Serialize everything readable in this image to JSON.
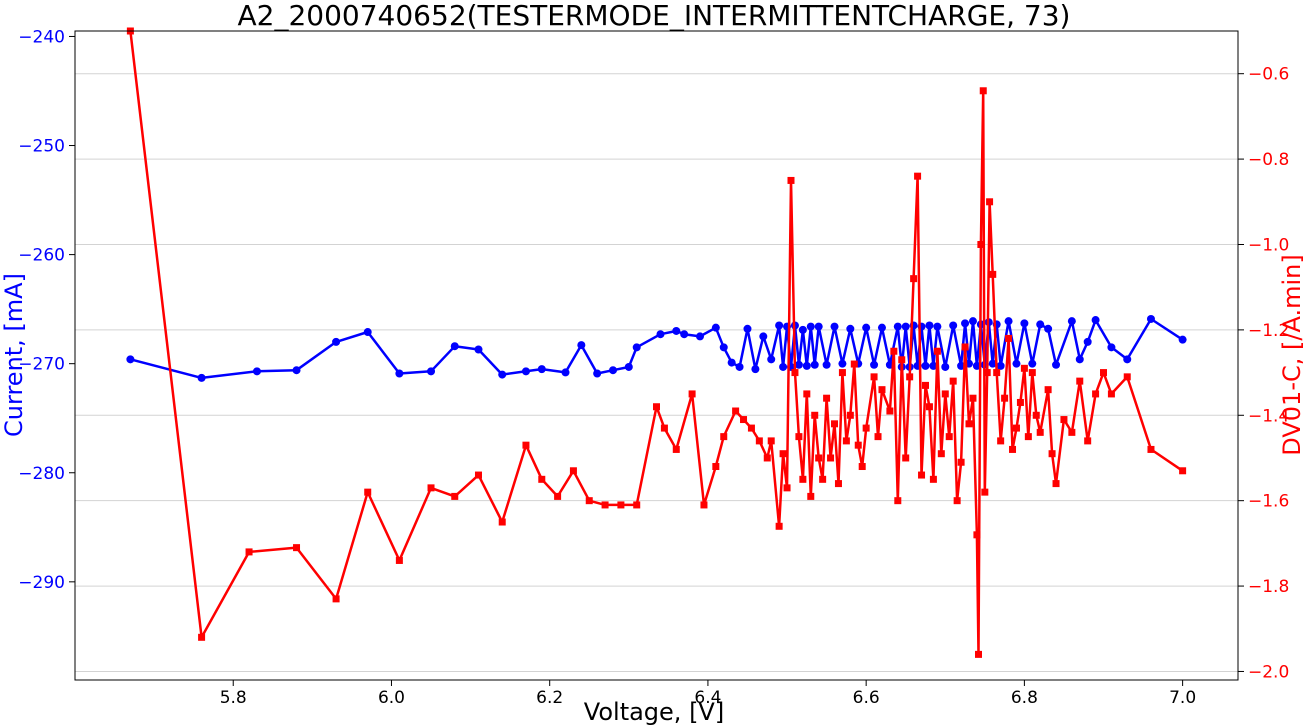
{
  "chart_data": {
    "type": "line",
    "title": "A2_2000740652(TESTERMODE_INTERMITTENTCHARGE, 73)",
    "xlabel": "Voltage, [V]",
    "ylabel_left": "Current, [mA]",
    "ylabel_right": "DV01-C, [/A.min]",
    "xlim": [
      5.6,
      7.07
    ],
    "ylim_left": [
      -299,
      -239.5
    ],
    "ylim_right": [
      -2.02,
      -0.5
    ],
    "xticks": [
      5.8,
      6.0,
      6.2,
      6.4,
      6.6,
      6.8,
      7.0
    ],
    "yticks_left": [
      -290,
      -280,
      -270,
      -260,
      -250,
      -240
    ],
    "yticks_right": [
      -2.0,
      -1.8,
      -1.6,
      -1.4,
      -1.2,
      -1.0,
      -0.8,
      -0.6
    ],
    "xtick_labels": [
      "5.8",
      "6.0",
      "6.2",
      "6.4",
      "6.6",
      "6.8",
      "7.0"
    ],
    "ytick_labels_left": [
      "−290",
      "−280",
      "−270",
      "−260",
      "−250",
      "−240"
    ],
    "ytick_labels_right": [
      "−2.0",
      "−1.8",
      "−1.6",
      "−1.4",
      "−1.2",
      "−1.0",
      "−0.8",
      "−0.6"
    ],
    "grid": true,
    "colors": {
      "current": "#0000ff",
      "dv": "#ff0000",
      "grid": "#d3d3d3"
    },
    "series": [
      {
        "axis": "left",
        "marker": "circle",
        "color": "#0000ff",
        "x": [
          5.67,
          5.76,
          5.83,
          5.88,
          5.93,
          5.97,
          6.01,
          6.05,
          6.08,
          6.11,
          6.14,
          6.17,
          6.19,
          6.22,
          6.24,
          6.26,
          6.28,
          6.3,
          6.31,
          6.34,
          6.36,
          6.37,
          6.39,
          6.41,
          6.42,
          6.43,
          6.44,
          6.45,
          6.46,
          6.47,
          6.48,
          6.49,
          6.495,
          6.5,
          6.505,
          6.51,
          6.515,
          6.52,
          6.525,
          6.53,
          6.535,
          6.54,
          6.55,
          6.56,
          6.57,
          6.58,
          6.59,
          6.6,
          6.61,
          6.62,
          6.63,
          6.64,
          6.645,
          6.65,
          6.655,
          6.66,
          6.665,
          6.67,
          6.675,
          6.68,
          6.685,
          6.69,
          6.7,
          6.71,
          6.72,
          6.725,
          6.73,
          6.735,
          6.74,
          6.745,
          6.75,
          6.755,
          6.76,
          6.765,
          6.77,
          6.78,
          6.79,
          6.8,
          6.81,
          6.82,
          6.83,
          6.84,
          6.86,
          6.87,
          6.88,
          6.89,
          6.91,
          6.93,
          6.96,
          7.0
        ],
        "y": [
          -269.6,
          -271.3,
          -270.7,
          -270.6,
          -268.0,
          -267.1,
          -270.9,
          -270.7,
          -268.4,
          -268.7,
          -271.0,
          -270.7,
          -270.5,
          -270.8,
          -268.3,
          -270.9,
          -270.6,
          -270.3,
          -268.5,
          -267.3,
          -267.0,
          -267.3,
          -267.5,
          -266.7,
          -268.5,
          -269.9,
          -270.3,
          -266.8,
          -270.5,
          -267.5,
          -269.6,
          -266.5,
          -270.3,
          -266.6,
          -270.3,
          -266.5,
          -270.1,
          -266.9,
          -270.2,
          -266.6,
          -270.1,
          -266.6,
          -270.1,
          -266.6,
          -270.0,
          -266.8,
          -270.0,
          -266.7,
          -270.1,
          -266.7,
          -270.1,
          -266.6,
          -270.3,
          -266.6,
          -270.3,
          -266.5,
          -270.2,
          -266.6,
          -270.2,
          -266.5,
          -270.2,
          -266.6,
          -270.3,
          -266.5,
          -270.2,
          -266.3,
          -270.0,
          -266.1,
          -270.2,
          -266.4,
          -270.1,
          -266.2,
          -270.0,
          -266.4,
          -270.2,
          -266.1,
          -270.0,
          -266.3,
          -270.0,
          -266.4,
          -266.8,
          -270.1,
          -266.1,
          -269.6,
          -268.0,
          -266.0,
          -268.5,
          -269.6,
          -265.9,
          -267.8
        ]
      },
      {
        "axis": "right",
        "marker": "square",
        "color": "#ff0000",
        "x": [
          5.67,
          5.76,
          5.82,
          5.88,
          5.93,
          5.97,
          6.01,
          6.05,
          6.08,
          6.11,
          6.14,
          6.17,
          6.19,
          6.21,
          6.23,
          6.25,
          6.27,
          6.29,
          6.31,
          6.335,
          6.345,
          6.36,
          6.38,
          6.395,
          6.41,
          6.42,
          6.435,
          6.445,
          6.455,
          6.465,
          6.475,
          6.48,
          6.49,
          6.495,
          6.5,
          6.505,
          6.51,
          6.515,
          6.52,
          6.525,
          6.53,
          6.535,
          6.54,
          6.545,
          6.55,
          6.555,
          6.56,
          6.565,
          6.57,
          6.575,
          6.58,
          6.585,
          6.59,
          6.595,
          6.6,
          6.61,
          6.615,
          6.62,
          6.63,
          6.635,
          6.64,
          6.645,
          6.65,
          6.655,
          6.66,
          6.665,
          6.67,
          6.675,
          6.68,
          6.685,
          6.69,
          6.695,
          6.7,
          6.705,
          6.71,
          6.715,
          6.72,
          6.725,
          6.73,
          6.735,
          6.74,
          6.742,
          6.745,
          6.748,
          6.75,
          6.753,
          6.756,
          6.76,
          6.765,
          6.77,
          6.775,
          6.78,
          6.785,
          6.79,
          6.795,
          6.8,
          6.805,
          6.81,
          6.815,
          6.82,
          6.83,
          6.835,
          6.84,
          6.85,
          6.86,
          6.87,
          6.88,
          6.89,
          6.9,
          6.91,
          6.93,
          6.96,
          7.0
        ],
        "y": [
          -0.5,
          -1.92,
          -1.72,
          -1.71,
          -1.83,
          -1.58,
          -1.74,
          -1.57,
          -1.59,
          -1.54,
          -1.65,
          -1.47,
          -1.55,
          -1.59,
          -1.53,
          -1.6,
          -1.61,
          -1.61,
          -1.61,
          -1.38,
          -1.43,
          -1.48,
          -1.35,
          -1.61,
          -1.52,
          -1.45,
          -1.39,
          -1.41,
          -1.43,
          -1.46,
          -1.5,
          -1.46,
          -1.66,
          -1.49,
          -1.57,
          -0.85,
          -1.3,
          -1.45,
          -1.55,
          -1.35,
          -1.59,
          -1.4,
          -1.5,
          -1.55,
          -1.36,
          -1.5,
          -1.42,
          -1.56,
          -1.3,
          -1.46,
          -1.4,
          -1.28,
          -1.47,
          -1.52,
          -1.43,
          -1.31,
          -1.45,
          -1.34,
          -1.39,
          -1.25,
          -1.6,
          -1.27,
          -1.5,
          -1.31,
          -1.08,
          -0.84,
          -1.54,
          -1.33,
          -1.38,
          -1.55,
          -1.25,
          -1.49,
          -1.35,
          -1.45,
          -1.32,
          -1.6,
          -1.51,
          -1.24,
          -1.42,
          -1.36,
          -1.68,
          -1.96,
          -1.0,
          -0.64,
          -1.58,
          -1.3,
          -0.9,
          -1.07,
          -1.3,
          -1.46,
          -1.36,
          -1.22,
          -1.48,
          -1.43,
          -1.37,
          -1.29,
          -1.45,
          -1.3,
          -1.4,
          -1.44,
          -1.34,
          -1.49,
          -1.56,
          -1.41,
          -1.44,
          -1.32,
          -1.46,
          -1.35,
          -1.3,
          -1.35,
          -1.31,
          -1.48,
          -1.53
        ]
      }
    ]
  }
}
